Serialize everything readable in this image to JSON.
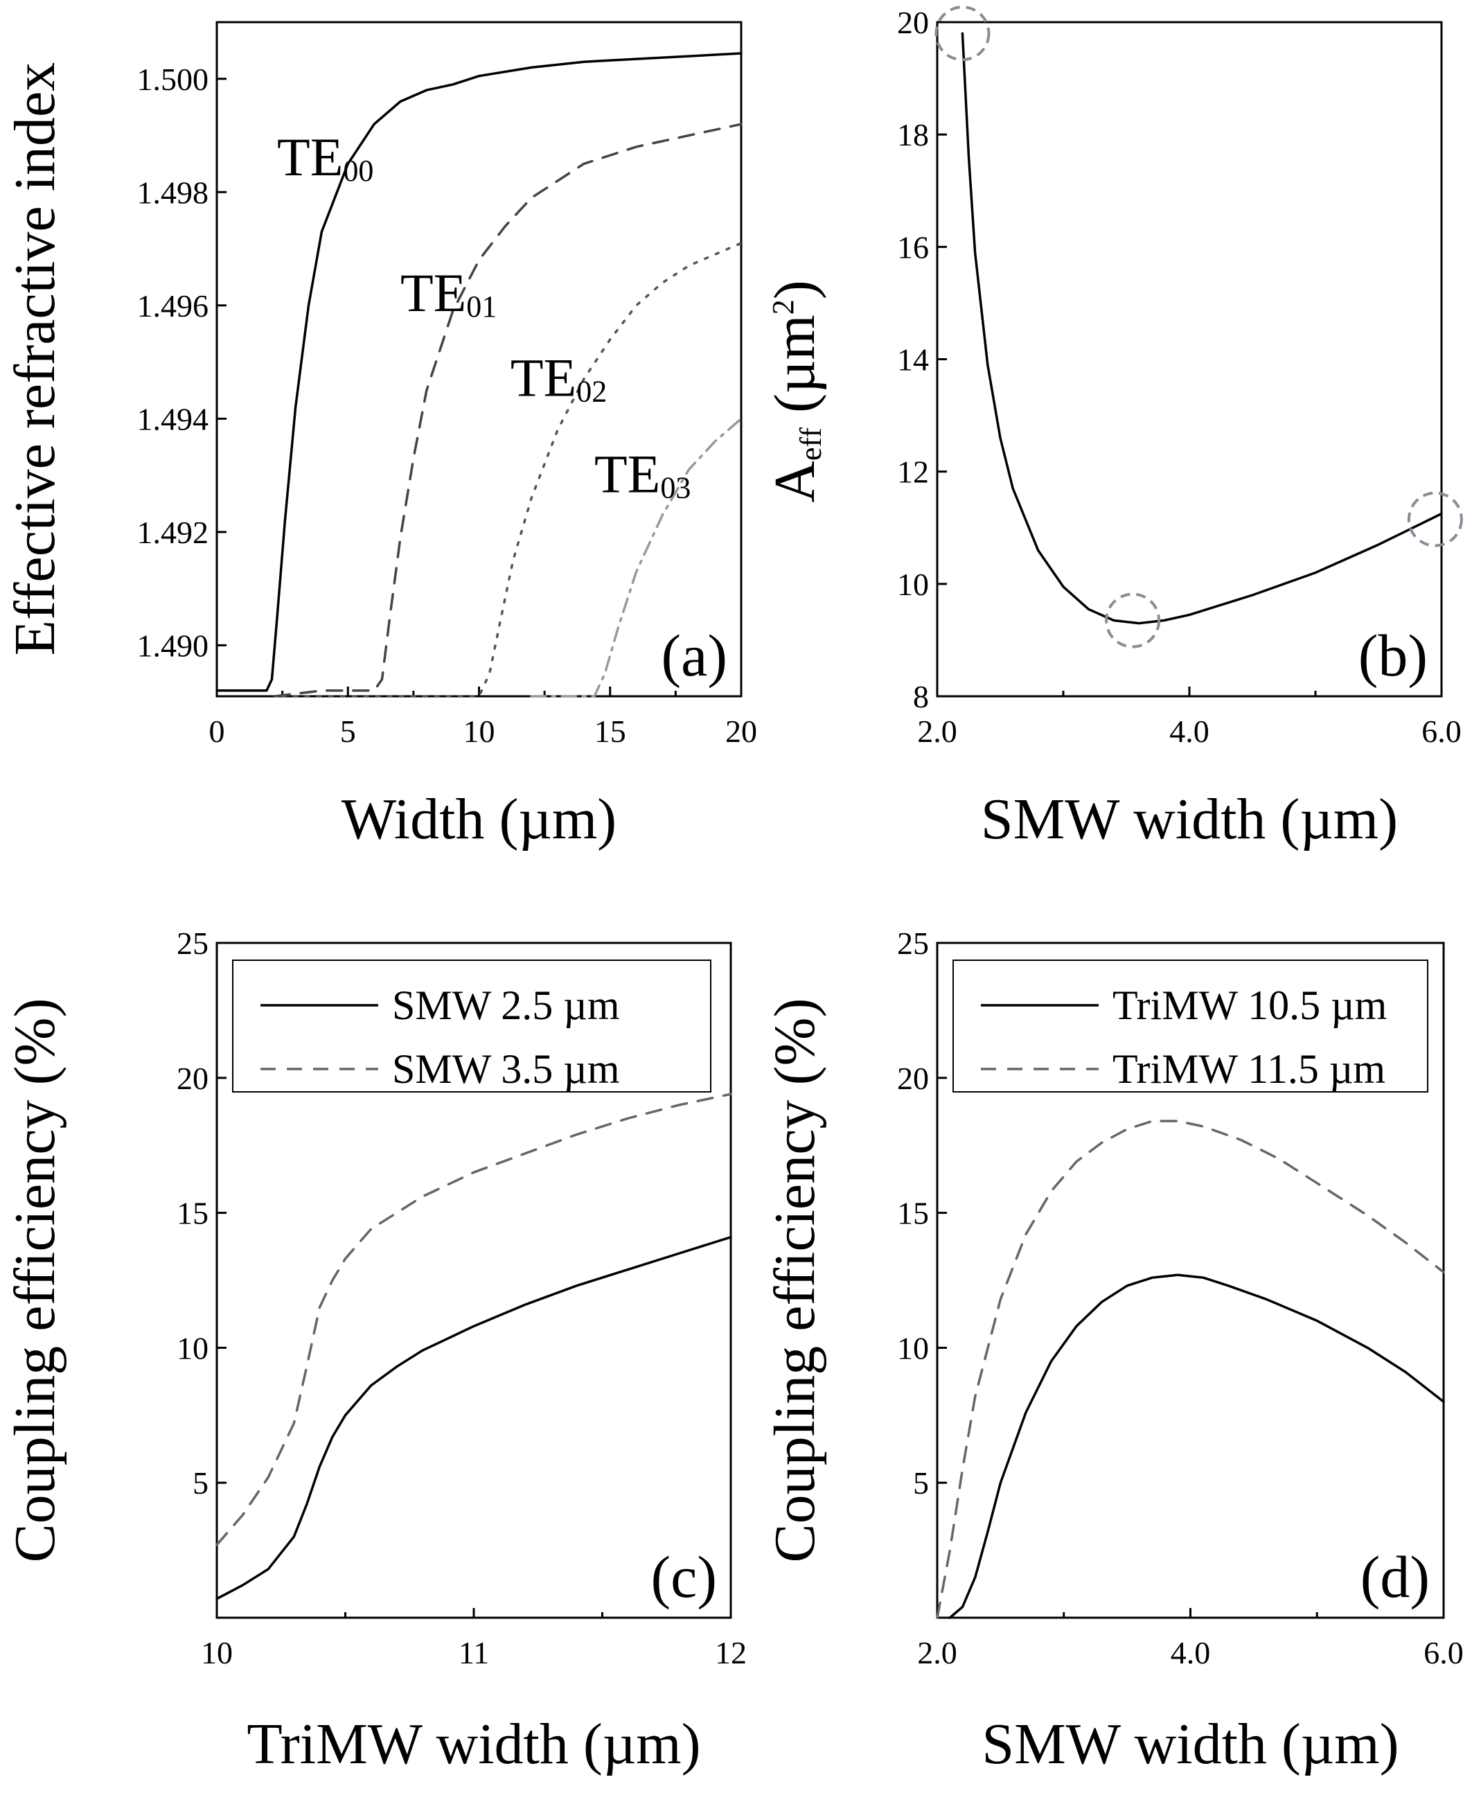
{
  "chart_data": [
    {
      "id": "a",
      "type": "line",
      "panel_label": "(a)",
      "xlabel": "Width (µm)",
      "ylabel": "Effective refractive index",
      "xlim": [
        0,
        20
      ],
      "ylim": [
        1.4891,
        1.501
      ],
      "xticks": [
        0,
        5,
        10,
        15,
        20
      ],
      "xtick_labels": [
        "0",
        "5",
        "10",
        "15",
        "20"
      ],
      "yticks": [
        1.49,
        1.492,
        1.494,
        1.496,
        1.498,
        1.5
      ],
      "ytick_labels": [
        "1.490",
        "1.492",
        "1.494",
        "1.496",
        "1.498",
        "1.500"
      ],
      "series": [
        {
          "name": "TE00",
          "label_main": "TE",
          "label_sub": "00",
          "style": "solid",
          "color": "#000000",
          "x": [
            0,
            1,
            1.9,
            2.1,
            2.3,
            2.6,
            3,
            3.5,
            4,
            5,
            6,
            7,
            8,
            9,
            10,
            12,
            14,
            16,
            18,
            20
          ],
          "y": [
            1.4892,
            1.4892,
            1.4892,
            1.4894,
            1.4905,
            1.4922,
            1.4942,
            1.496,
            1.4973,
            1.4985,
            1.4992,
            1.4996,
            1.4998,
            1.4999,
            1.50005,
            1.5002,
            1.5003,
            1.50035,
            1.5004,
            1.50045
          ],
          "label_pos": [
            2.3,
            1.4983
          ]
        },
        {
          "name": "TE01",
          "label_main": "TE",
          "label_sub": "01",
          "style": "dashed",
          "color": "#444444",
          "x": [
            2.2,
            4,
            6,
            6.3,
            6.6,
            7,
            7.5,
            8,
            9,
            10,
            11,
            12,
            14,
            16,
            18,
            20
          ],
          "y": [
            1.4891,
            1.4892,
            1.4892,
            1.4894,
            1.4905,
            1.4919,
            1.4933,
            1.4945,
            1.4959,
            1.4968,
            1.4974,
            1.4979,
            1.4985,
            1.4988,
            1.499,
            1.4992
          ],
          "label_pos": [
            7.0,
            1.4959
          ]
        },
        {
          "name": "TE02",
          "label_main": "TE",
          "label_sub": "02",
          "style": "dotted",
          "color": "#555555",
          "x": [
            2.5,
            6,
            10,
            10.4,
            10.8,
            11.3,
            12,
            13,
            14,
            15,
            16,
            17,
            18,
            19,
            20
          ],
          "y": [
            1.4891,
            1.4891,
            1.4891,
            1.4895,
            1.4904,
            1.4915,
            1.4926,
            1.4938,
            1.4947,
            1.4954,
            1.496,
            1.4964,
            1.4967,
            1.4969,
            1.4971
          ],
          "label_pos": [
            11.2,
            1.4944
          ]
        },
        {
          "name": "TE03",
          "label_main": "TE",
          "label_sub": "03",
          "style": "dashdot",
          "color": "#999999",
          "x": [
            12,
            13,
            14.4,
            14.8,
            15.3,
            16,
            17,
            18,
            19,
            20
          ],
          "y": [
            1.4891,
            1.4891,
            1.4891,
            1.4895,
            1.4903,
            1.4913,
            1.4923,
            1.4931,
            1.4936,
            1.494
          ],
          "label_pos": [
            14.4,
            1.4927
          ]
        }
      ]
    },
    {
      "id": "b",
      "type": "line",
      "panel_label": "(b)",
      "xlabel": "SMW width (µm)",
      "ylabel_main": "A",
      "ylabel_sub": "eff",
      "ylabel_rest": " (µm",
      "ylabel_sup": "2",
      "ylabel_close": ")",
      "xlim": [
        2.0,
        6.0
      ],
      "ylim": [
        8,
        20
      ],
      "xticks": [
        2,
        4,
        6
      ],
      "xtick_labels": [
        "2.0",
        "4.0",
        "6.0"
      ],
      "yticks": [
        8,
        10,
        12,
        14,
        16,
        18,
        20
      ],
      "ytick_labels": [
        "8",
        "10",
        "12",
        "14",
        "16",
        "18",
        "20"
      ],
      "series": [
        {
          "name": "Aeff",
          "style": "solid",
          "color": "#000000",
          "x": [
            2.2,
            2.25,
            2.3,
            2.4,
            2.5,
            2.6,
            2.8,
            3.0,
            3.2,
            3.4,
            3.6,
            3.8,
            4.0,
            4.5,
            5.0,
            5.5,
            6.0
          ],
          "y": [
            19.8,
            17.6,
            15.9,
            13.9,
            12.6,
            11.7,
            10.6,
            9.95,
            9.55,
            9.35,
            9.3,
            9.35,
            9.45,
            9.8,
            10.2,
            10.7,
            11.25
          ]
        }
      ],
      "circles": [
        {
          "x": 2.2,
          "y": 19.8
        },
        {
          "x": 3.55,
          "y": 9.35
        },
        {
          "x": 5.95,
          "y": 11.15
        }
      ]
    },
    {
      "id": "c",
      "type": "line",
      "panel_label": "(c)",
      "xlabel": "TriMW width (µm)",
      "ylabel": "Coupling efficiency (%)",
      "xlim": [
        10,
        12
      ],
      "ylim": [
        0,
        25
      ],
      "xticks": [
        10,
        11,
        12
      ],
      "xtick_labels": [
        "10",
        "11",
        "12"
      ],
      "yticks": [
        5,
        10,
        15,
        20,
        25
      ],
      "ytick_labels": [
        "5",
        "10",
        "15",
        "20",
        "25"
      ],
      "legend": [
        "SMW 2.5 µm",
        "SMW 3.5 µm"
      ],
      "series": [
        {
          "name": "SMW 2.5 µm",
          "style": "solid",
          "color": "#000000",
          "x": [
            10,
            10.1,
            10.2,
            10.3,
            10.35,
            10.4,
            10.45,
            10.5,
            10.6,
            10.7,
            10.8,
            11,
            11.2,
            11.4,
            11.6,
            11.8,
            12
          ],
          "y": [
            0.7,
            1.2,
            1.8,
            3.0,
            4.2,
            5.6,
            6.7,
            7.5,
            8.6,
            9.3,
            9.9,
            10.8,
            11.6,
            12.3,
            12.9,
            13.5,
            14.1
          ]
        },
        {
          "name": "SMW 3.5 µm",
          "style": "dashed",
          "color": "#666666",
          "x": [
            10,
            10.1,
            10.2,
            10.3,
            10.35,
            10.4,
            10.45,
            10.5,
            10.6,
            10.7,
            10.8,
            11,
            11.2,
            11.4,
            11.6,
            11.8,
            12
          ],
          "y": [
            2.7,
            3.8,
            5.2,
            7.2,
            9.3,
            11.5,
            12.5,
            13.3,
            14.4,
            15.0,
            15.6,
            16.5,
            17.2,
            17.9,
            18.5,
            19.0,
            19.4
          ]
        }
      ]
    },
    {
      "id": "d",
      "type": "line",
      "panel_label": "(d)",
      "xlabel": "SMW width (µm)",
      "ylabel": "Coupling efficiency (%)",
      "xlim": [
        2.0,
        6.0
      ],
      "ylim": [
        0,
        25
      ],
      "xticks": [
        2,
        4,
        6
      ],
      "xtick_labels": [
        "2.0",
        "4.0",
        "6.0"
      ],
      "yticks": [
        5,
        10,
        15,
        20,
        25
      ],
      "ytick_labels": [
        "5",
        "10",
        "15",
        "20",
        "25"
      ],
      "legend": [
        "TriMW 10.5 µm",
        "TriMW 11.5 µm"
      ],
      "series": [
        {
          "name": "TriMW 10.5 µm",
          "style": "solid",
          "color": "#000000",
          "x": [
            2.1,
            2.2,
            2.3,
            2.4,
            2.5,
            2.7,
            2.9,
            3.1,
            3.3,
            3.5,
            3.7,
            3.9,
            4.1,
            4.3,
            4.6,
            5.0,
            5.4,
            5.7,
            6.0
          ],
          "y": [
            0,
            0.4,
            1.5,
            3.2,
            5.0,
            7.6,
            9.5,
            10.8,
            11.7,
            12.3,
            12.6,
            12.7,
            12.6,
            12.3,
            11.8,
            11.0,
            10.0,
            9.1,
            8.0
          ]
        },
        {
          "name": "TriMW 11.5 µm",
          "style": "dashed",
          "color": "#666666",
          "x": [
            2.0,
            2.1,
            2.2,
            2.3,
            2.5,
            2.7,
            2.9,
            3.1,
            3.3,
            3.5,
            3.7,
            3.9,
            4.1,
            4.4,
            4.7,
            5.0,
            5.4,
            5.7,
            6.0
          ],
          "y": [
            0,
            2.5,
            5.5,
            8.2,
            11.8,
            14.2,
            15.8,
            16.9,
            17.6,
            18.1,
            18.4,
            18.4,
            18.2,
            17.7,
            17.0,
            16.1,
            14.9,
            13.9,
            12.8
          ]
        }
      ]
    }
  ]
}
